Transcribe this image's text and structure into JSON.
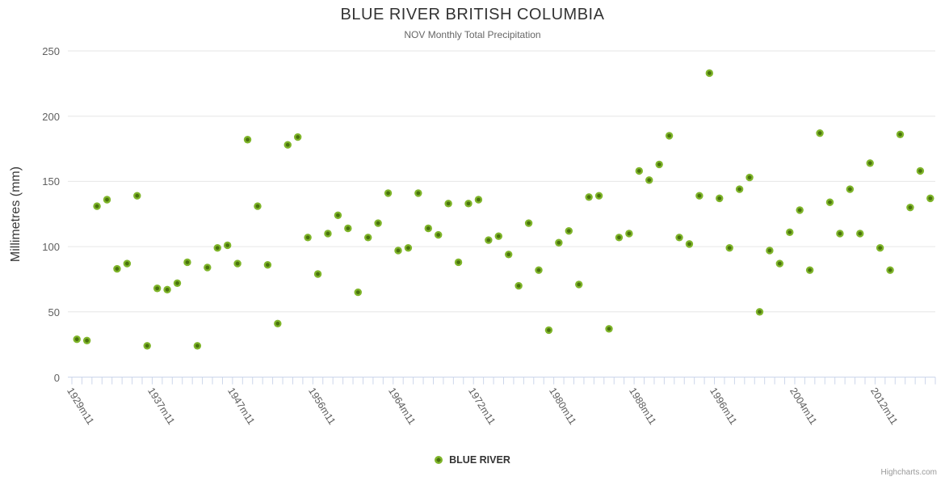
{
  "chart_data": {
    "type": "scatter",
    "title": "BLUE RIVER BRITISH COLUMBIA",
    "subtitle": "NOV Monthly Total Precipitation",
    "ylabel": "Millimetres (mm)",
    "ylim": [
      0,
      250
    ],
    "yticks": [
      0,
      50,
      100,
      150,
      200,
      250
    ],
    "grid": "horizontal",
    "legend_position": "bottom-center",
    "n_categories": 86,
    "x_tick_labels": [
      {
        "index": 0,
        "label": "1929m11"
      },
      {
        "index": 8,
        "label": "1937m11"
      },
      {
        "index": 16,
        "label": "1947m11"
      },
      {
        "index": 24,
        "label": "1956m11"
      },
      {
        "index": 32,
        "label": "1964m11"
      },
      {
        "index": 40,
        "label": "1972m11"
      },
      {
        "index": 48,
        "label": "1980m11"
      },
      {
        "index": 56,
        "label": "1988m11"
      },
      {
        "index": 64,
        "label": "1996m11"
      },
      {
        "index": 72,
        "label": "2004m11"
      },
      {
        "index": 80,
        "label": "2012m11"
      }
    ],
    "series": [
      {
        "name": "BLUE RIVER",
        "values": [
          29,
          28,
          131,
          136,
          83,
          87,
          139,
          24,
          68,
          67,
          72,
          88,
          24,
          84,
          99,
          101,
          87,
          182,
          131,
          86,
          41,
          178,
          184,
          107,
          79,
          110,
          124,
          114,
          65,
          107,
          118,
          141,
          97,
          99,
          141,
          114,
          109,
          133,
          88,
          133,
          136,
          105,
          108,
          94,
          70,
          118,
          82,
          36,
          103,
          112,
          71,
          138,
          139,
          37,
          107,
          110,
          158,
          151,
          163,
          185,
          107,
          102,
          139,
          233,
          137,
          99,
          144,
          153,
          50,
          97,
          87,
          111,
          128,
          82,
          187,
          134,
          110,
          144,
          110,
          164,
          99,
          82,
          186,
          130,
          158,
          137
        ]
      }
    ]
  },
  "legend": {
    "label": "BLUE RIVER"
  },
  "credits": {
    "text": "Highcharts.com"
  },
  "colors": {
    "marker_outer": "#7fb52a",
    "marker_inner": "#4a720e",
    "grid": "#e6e6e6",
    "axis": "#ccd6eb",
    "title": "#333333",
    "subtitle": "#666666",
    "tick_label": "#606060"
  }
}
